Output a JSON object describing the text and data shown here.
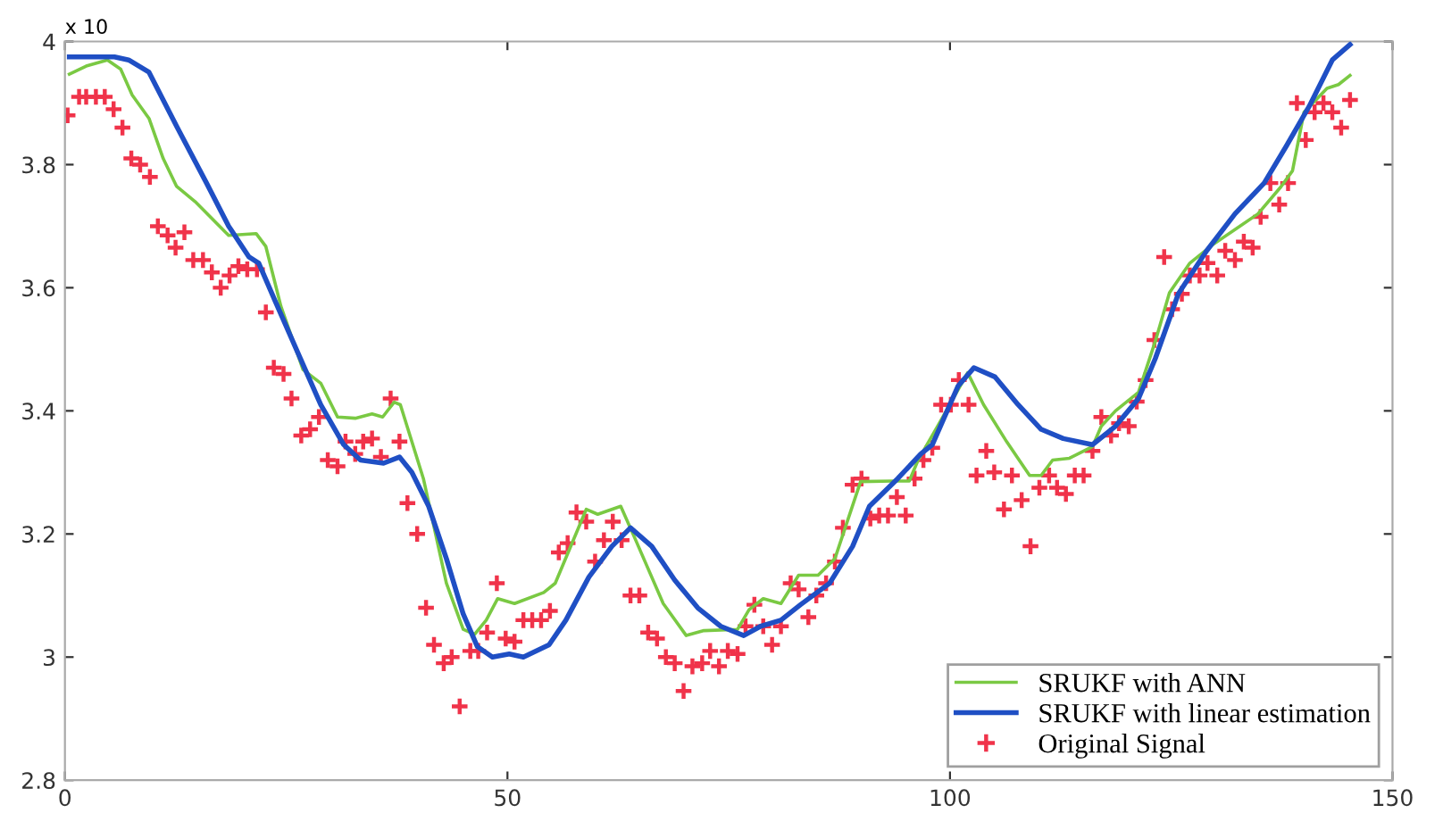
{
  "chart_data": {
    "type": "line",
    "annotations": [
      "x 10"
    ],
    "xlim": [
      0,
      150
    ],
    "ylim": [
      2.8,
      4
    ],
    "xticks": [
      0,
      50,
      100,
      150
    ],
    "yticks": [
      2.8,
      3,
      3.2,
      3.4,
      3.6,
      3.8,
      4
    ],
    "grid": false,
    "legend": "bottom right",
    "series": [
      {
        "name": "SRUKF with ANN",
        "color": "#7ac943",
        "marker": "none",
        "line_style": "solid",
        "x": [
          0.5,
          2.4,
          4.8,
          6.3,
          7.6,
          9.5,
          11.1,
          12.6,
          14.7,
          18.5,
          21.6,
          22.7,
          24.4,
          26.9,
          28.9,
          30.8,
          32.8,
          34.7,
          35.9,
          37.2,
          37.9,
          40.5,
          43.1,
          45.0,
          46.3,
          47.6,
          48.9,
          50.8,
          54.1,
          55.4,
          58.9,
          60.2,
          62.8,
          64.4,
          67.6,
          70.2,
          72.2,
          76.0,
          77.3,
          78.9,
          80.9,
          82.9,
          85.1,
          87.0,
          89.9,
          93.5,
          95.4,
          96.4,
          98.6,
          102.0,
          103.8,
          106.4,
          109.0,
          110.3,
          111.6,
          113.5,
          116.1,
          117.1,
          118.7,
          121.3,
          123.2,
          124.8,
          127.1,
          129.7,
          134.8,
          137.4,
          138.7,
          140.0,
          142.6,
          143.9,
          145.2
        ],
        "values": [
          3.947,
          3.96,
          3.97,
          3.955,
          3.913,
          3.875,
          3.81,
          3.765,
          3.74,
          3.685,
          3.688,
          3.667,
          3.57,
          3.467,
          3.445,
          3.39,
          3.388,
          3.395,
          3.39,
          3.414,
          3.41,
          3.29,
          3.12,
          3.045,
          3.037,
          3.06,
          3.095,
          3.087,
          3.105,
          3.12,
          3.24,
          3.232,
          3.245,
          3.193,
          3.087,
          3.035,
          3.043,
          3.045,
          3.077,
          3.095,
          3.087,
          3.133,
          3.133,
          3.16,
          3.285,
          3.286,
          3.286,
          3.32,
          3.375,
          3.462,
          3.41,
          3.35,
          3.295,
          3.295,
          3.32,
          3.323,
          3.342,
          3.375,
          3.4,
          3.43,
          3.513,
          3.592,
          3.64,
          3.67,
          3.72,
          3.764,
          3.79,
          3.885,
          3.924,
          3.93,
          3.945
        ]
      },
      {
        "name": "SRUKF with linear estimation",
        "color": "#1f4fc4",
        "marker": "none",
        "line_style": "solid",
        "x": [
          0.5,
          5.6,
          7.2,
          9.5,
          12.7,
          16.0,
          18.5,
          20.8,
          21.9,
          23.7,
          26.3,
          28.9,
          31.5,
          33.4,
          36.0,
          37.8,
          39.2,
          41.1,
          43.1,
          45.0,
          46.6,
          48.3,
          50.2,
          51.8,
          54.7,
          56.6,
          59.2,
          61.8,
          63.9,
          66.3,
          68.9,
          71.5,
          74.1,
          76.7,
          78.6,
          80.9,
          83.1,
          86.4,
          89.0,
          90.9,
          94.1,
          96.7,
          98.0,
          100.9,
          102.7,
          105.1,
          107.7,
          110.3,
          112.8,
          116.1,
          118.7,
          121.3,
          123.2,
          125.8,
          129.0,
          132.2,
          135.5,
          138.0,
          140.6,
          143.2,
          145.2
        ],
        "values": [
          3.975,
          3.975,
          3.97,
          3.95,
          3.86,
          3.77,
          3.7,
          3.65,
          3.64,
          3.58,
          3.495,
          3.41,
          3.345,
          3.32,
          3.315,
          3.325,
          3.3,
          3.245,
          3.16,
          3.07,
          3.017,
          3.0,
          3.005,
          3.0,
          3.02,
          3.06,
          3.13,
          3.18,
          3.21,
          3.18,
          3.125,
          3.08,
          3.05,
          3.035,
          3.05,
          3.06,
          3.085,
          3.12,
          3.18,
          3.245,
          3.29,
          3.33,
          3.345,
          3.44,
          3.47,
          3.455,
          3.41,
          3.37,
          3.355,
          3.345,
          3.375,
          3.42,
          3.485,
          3.59,
          3.66,
          3.72,
          3.77,
          3.83,
          3.895,
          3.97,
          3.995
        ]
      },
      {
        "name": "Original Signal",
        "type": "scatter",
        "color": "#f0334a",
        "marker": "cross",
        "x": [
          0.3,
          1.6,
          2.4,
          3.5,
          4.5,
          5.5,
          6.5,
          7.5,
          8.5,
          9.6,
          10.5,
          11.6,
          12.5,
          13.5,
          14.5,
          15.6,
          16.6,
          17.6,
          18.6,
          19.6,
          20.6,
          21.7,
          22.7,
          23.6,
          24.7,
          25.6,
          26.7,
          27.7,
          28.7,
          29.7,
          30.8,
          31.7,
          32.8,
          33.7,
          34.7,
          35.7,
          36.8,
          37.8,
          38.7,
          39.8,
          40.8,
          41.7,
          42.8,
          43.7,
          44.6,
          45.8,
          46.7,
          47.7,
          48.8,
          49.8,
          50.8,
          51.8,
          52.8,
          53.8,
          54.8,
          55.8,
          56.8,
          57.8,
          58.9,
          59.9,
          60.9,
          61.9,
          62.9,
          63.9,
          64.9,
          65.9,
          66.9,
          67.9,
          68.9,
          69.9,
          70.9,
          72.0,
          72.9,
          73.9,
          74.9,
          76.0,
          76.9,
          77.9,
          78.9,
          79.9,
          80.9,
          82.0,
          82.9,
          84.0,
          84.9,
          86.0,
          87.0,
          87.9,
          89.0,
          90.0,
          91.0,
          92.0,
          93.0,
          94.0,
          95.0,
          96.0,
          97.0,
          98.0,
          99.0,
          100.1,
          101.0,
          102.1,
          103.0,
          104.1,
          105.0,
          106.1,
          107.0,
          108.1,
          109.1,
          110.1,
          111.2,
          112.1,
          113.1,
          114.1,
          115.1,
          116.1,
          117.1,
          118.2,
          119.1,
          120.2,
          121.1,
          122.1,
          123.1,
          124.2,
          125.1,
          126.2,
          127.1,
          128.2,
          129.1,
          130.2,
          131.1,
          132.2,
          133.2,
          134.2,
          135.1,
          136.2,
          137.2,
          138.2,
          139.2,
          140.2,
          141.2,
          142.2,
          143.2,
          144.2,
          145.2
        ],
        "values": [
          3.88,
          3.91,
          3.91,
          3.91,
          3.91,
          3.89,
          3.86,
          3.81,
          3.8,
          3.78,
          3.7,
          3.685,
          3.665,
          3.69,
          3.645,
          3.645,
          3.625,
          3.6,
          3.62,
          3.635,
          3.63,
          3.63,
          3.56,
          3.47,
          3.46,
          3.42,
          3.36,
          3.37,
          3.39,
          3.32,
          3.31,
          3.35,
          3.33,
          3.35,
          3.355,
          3.325,
          3.42,
          3.35,
          3.25,
          3.2,
          3.08,
          3.02,
          2.99,
          3.0,
          2.92,
          3.01,
          3.01,
          3.04,
          3.12,
          3.03,
          3.025,
          3.06,
          3.06,
          3.06,
          3.075,
          3.17,
          3.185,
          3.235,
          3.22,
          3.155,
          3.19,
          3.22,
          3.19,
          3.1,
          3.1,
          3.04,
          3.03,
          3.0,
          2.99,
          2.945,
          2.985,
          2.99,
          3.01,
          2.985,
          3.01,
          3.005,
          3.05,
          3.085,
          3.05,
          3.02,
          3.05,
          3.12,
          3.11,
          3.065,
          3.1,
          3.12,
          3.155,
          3.21,
          3.28,
          3.29,
          3.225,
          3.23,
          3.23,
          3.26,
          3.23,
          3.29,
          3.32,
          3.34,
          3.41,
          3.41,
          3.45,
          3.41,
          3.295,
          3.335,
          3.3,
          3.24,
          3.295,
          3.255,
          3.18,
          3.275,
          3.295,
          3.275,
          3.265,
          3.295,
          3.295,
          3.335,
          3.39,
          3.36,
          3.38,
          3.375,
          3.415,
          3.45,
          3.515,
          3.65,
          3.565,
          3.59,
          3.62,
          3.62,
          3.64,
          3.62,
          3.66,
          3.645,
          3.675,
          3.665,
          3.715,
          3.77,
          3.735,
          3.77,
          3.9,
          3.84,
          3.885,
          3.9,
          3.885,
          3.86,
          3.905
        ]
      }
    ]
  }
}
